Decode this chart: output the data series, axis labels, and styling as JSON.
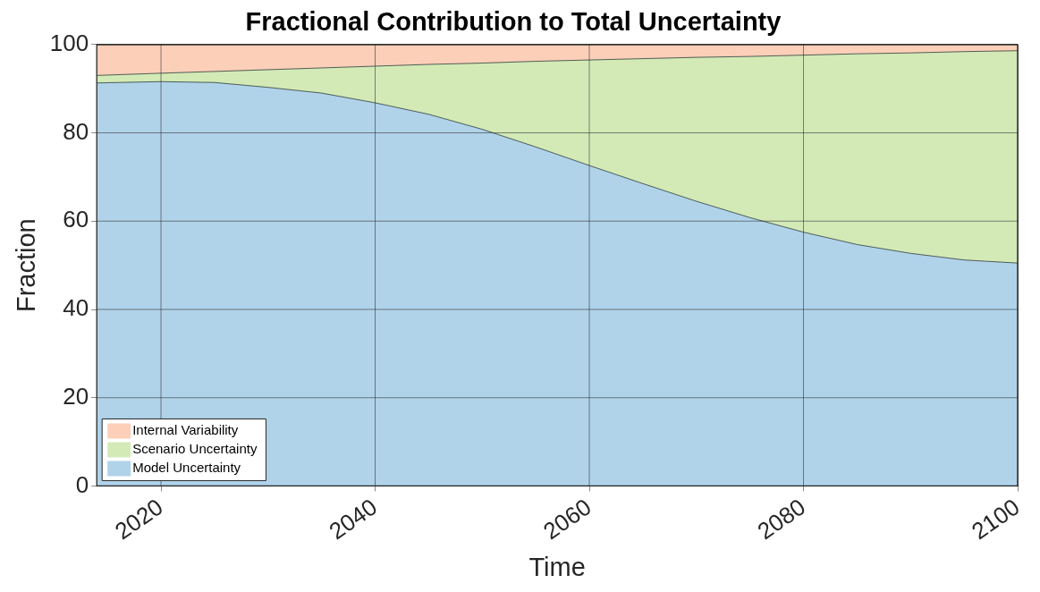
{
  "chart_data": {
    "type": "area",
    "title": "Fractional Contribution to Total Uncertainty",
    "xlabel": "Time",
    "ylabel": "Fraction",
    "x": [
      2014,
      2020,
      2025,
      2030,
      2035,
      2040,
      2045,
      2050,
      2055,
      2060,
      2065,
      2070,
      2075,
      2080,
      2085,
      2090,
      2095,
      2100
    ],
    "series": [
      {
        "name": "Model Uncertainty",
        "color": "#b0d3ea",
        "values": [
          91.3,
          91.6,
          91.4,
          90.3,
          89.0,
          86.8,
          84.2,
          80.8,
          76.8,
          72.6,
          68.5,
          64.5,
          60.8,
          57.5,
          54.7,
          52.7,
          51.2,
          50.5
        ]
      },
      {
        "name": "Scenario Uncertainty",
        "color": "#d3eab7",
        "values": [
          1.7,
          1.9,
          2.5,
          4.0,
          5.7,
          8.3,
          11.3,
          15.0,
          19.4,
          23.9,
          28.3,
          32.6,
          36.5,
          40.1,
          43.2,
          45.4,
          47.2,
          48.1
        ]
      },
      {
        "name": "Internal Variability",
        "color": "#fccfb9",
        "values": [
          7.0,
          6.5,
          6.1,
          5.7,
          5.3,
          4.9,
          4.5,
          4.2,
          3.8,
          3.5,
          3.2,
          2.9,
          2.7,
          2.4,
          2.1,
          1.9,
          1.6,
          1.4
        ]
      }
    ],
    "stacked": true,
    "xlim": [
      2014,
      2100
    ],
    "xticks": [
      2020,
      2040,
      2060,
      2080,
      2100
    ],
    "ylim": [
      0,
      100
    ],
    "yticks": [
      0,
      20,
      40,
      60,
      80,
      100
    ],
    "grid": true,
    "legend": "bottom left"
  }
}
